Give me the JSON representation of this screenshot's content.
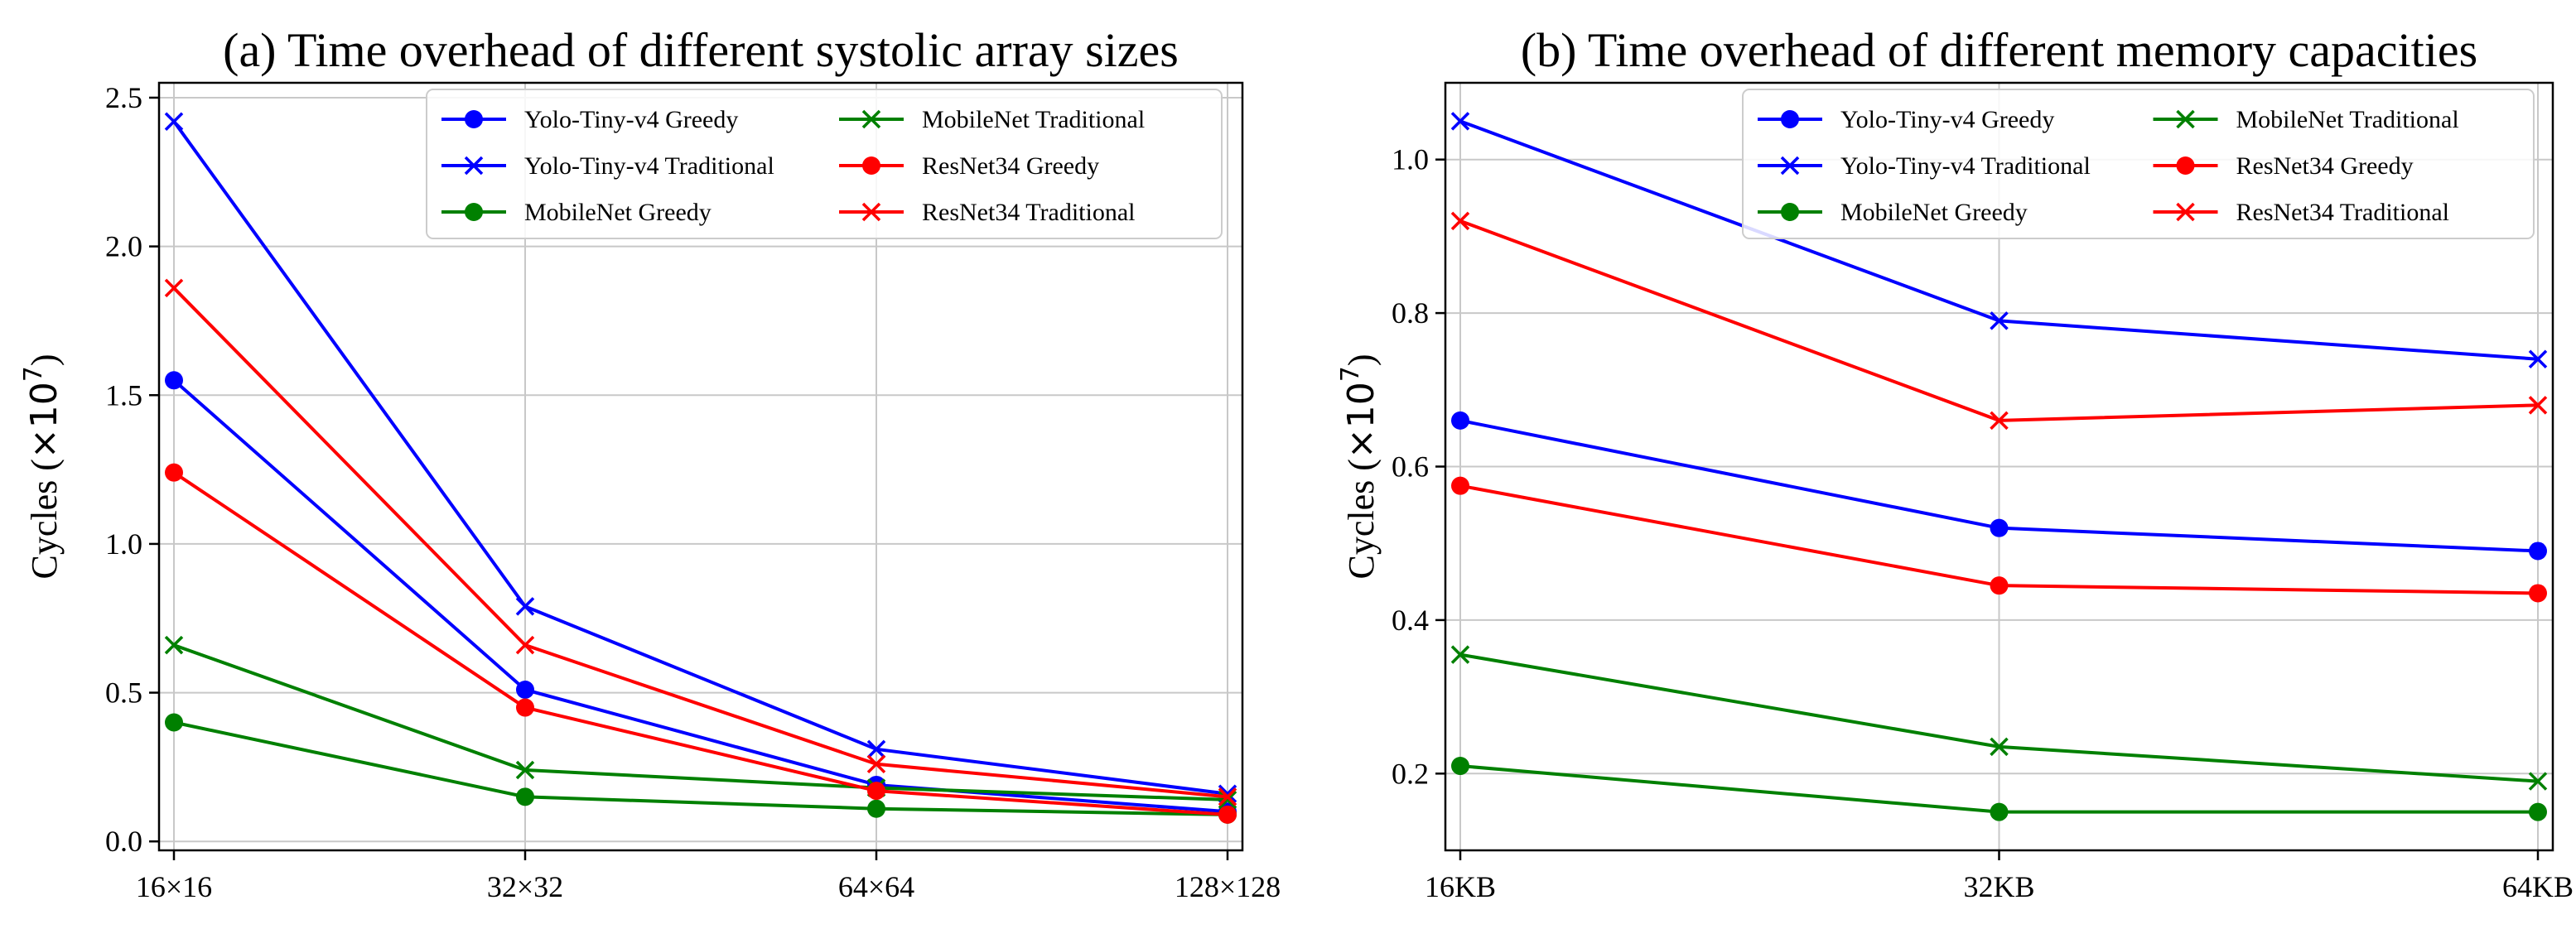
{
  "chart_data": [
    {
      "type": "line",
      "title": "(a) Time overhead of different systolic array sizes",
      "ylabel_base": "Cycles (",
      "ylabel_mult": "×10",
      "ylabel_exp": "7",
      "ylabel_close": ")",
      "xlabel": "",
      "categories": [
        "16×16",
        "32×32",
        "64×64",
        "128×128"
      ],
      "ylim": [
        -0.03,
        2.55
      ],
      "yticks": [
        0.0,
        0.5,
        1.0,
        1.5,
        2.0,
        2.5
      ],
      "ytick_labels": [
        "0.0",
        "0.5",
        "1.0",
        "1.5",
        "2.0",
        "2.5"
      ],
      "grid": true,
      "legend_position": "top-right",
      "series": [
        {
          "name": "Yolo-Tiny-v4 Greedy",
          "color": "#0000ff",
          "marker": "circle",
          "values": [
            1.55,
            0.51,
            0.19,
            0.1
          ]
        },
        {
          "name": "Yolo-Tiny-v4 Traditional",
          "color": "#0000ff",
          "marker": "x",
          "values": [
            2.42,
            0.79,
            0.31,
            0.16
          ]
        },
        {
          "name": "MobileNet Greedy",
          "color": "#008000",
          "marker": "circle",
          "values": [
            0.4,
            0.15,
            0.11,
            0.09
          ]
        },
        {
          "name": "MobileNet Traditional",
          "color": "#008000",
          "marker": "x",
          "values": [
            0.66,
            0.24,
            0.18,
            0.14
          ]
        },
        {
          "name": "ResNet34 Greedy",
          "color": "#ff0000",
          "marker": "circle",
          "values": [
            1.24,
            0.45,
            0.17,
            0.09
          ]
        },
        {
          "name": "ResNet34 Traditional",
          "color": "#ff0000",
          "marker": "x",
          "values": [
            1.86,
            0.66,
            0.26,
            0.15
          ]
        }
      ]
    },
    {
      "type": "line",
      "title": "(b) Time overhead of different memory capacities",
      "ylabel_base": "Cycles (",
      "ylabel_mult": "×10",
      "ylabel_exp": "7",
      "ylabel_close": ")",
      "xlabel": "",
      "categories": [
        "16KB",
        "32KB",
        "64KB"
      ],
      "ylim": [
        0.1,
        1.1
      ],
      "yticks": [
        0.2,
        0.4,
        0.6,
        0.8,
        1.0
      ],
      "ytick_labels": [
        "0.2",
        "0.4",
        "0.6",
        "0.8",
        "1.0"
      ],
      "grid": true,
      "legend_position": "top-right",
      "series": [
        {
          "name": "Yolo-Tiny-v4 Greedy",
          "color": "#0000ff",
          "marker": "circle",
          "values": [
            0.66,
            0.52,
            0.49
          ]
        },
        {
          "name": "Yolo-Tiny-v4 Traditional",
          "color": "#0000ff",
          "marker": "x",
          "values": [
            1.05,
            0.79,
            0.74
          ]
        },
        {
          "name": "MobileNet Greedy",
          "color": "#008000",
          "marker": "circle",
          "values": [
            0.21,
            0.15,
            0.15
          ]
        },
        {
          "name": "MobileNet Traditional",
          "color": "#008000",
          "marker": "x",
          "values": [
            0.355,
            0.235,
            0.19
          ]
        },
        {
          "name": "ResNet34 Greedy",
          "color": "#ff0000",
          "marker": "circle",
          "values": [
            0.575,
            0.445,
            0.435
          ]
        },
        {
          "name": "ResNet34 Traditional",
          "color": "#ff0000",
          "marker": "x",
          "values": [
            0.92,
            0.66,
            0.68
          ]
        }
      ]
    }
  ]
}
